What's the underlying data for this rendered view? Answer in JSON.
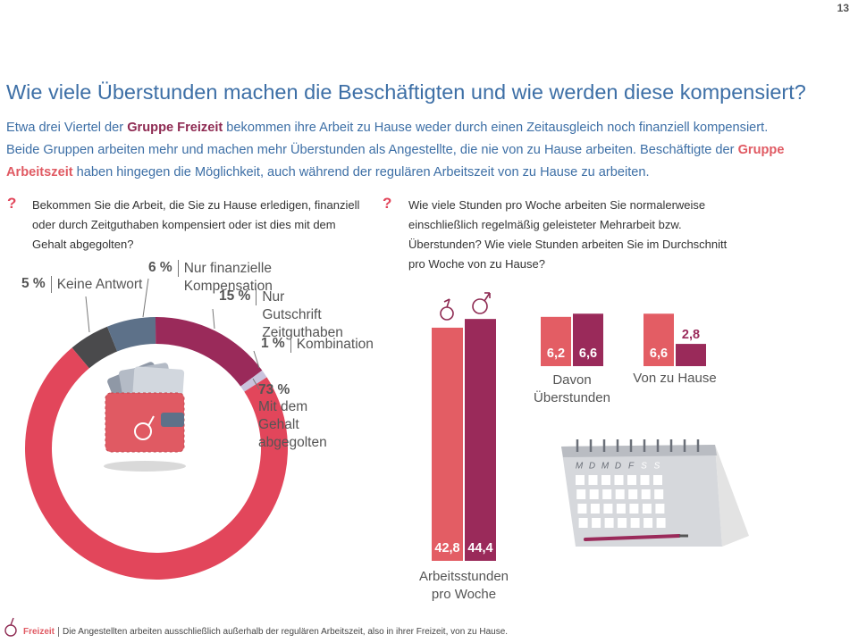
{
  "page_number": "13",
  "title": "Wie viele Überstunden machen die Beschäftigten und wie werden diese kompensiert?",
  "intro": {
    "text_1": "Etwa drei Viertel der ",
    "group_1": "Gruppe Freizeit",
    "text_2": " bekommen ihre Arbeit zu Hause weder durch einen Zeitausgleich noch finanziell kompensiert. Beide Gruppen arbeiten mehr und machen mehr Überstunden als Angestellte, die nie von zu Hause arbeiten. Beschäftigte der ",
    "group_2": "Gruppe Arbeitszeit",
    "text_3": " haben hingegen die Möglichkeit, auch während der regulären Arbeitszeit von zu Hause zu arbeiten."
  },
  "question_icon": "?",
  "questions": [
    "Bekommen Sie die Arbeit, die Sie zu Hause erledigen, finanziell oder durch Zeitguthaben kompensiert oder ist dies mit dem Gehalt abgegolten?",
    "Wie viele Stunden pro Woche arbeiten Sie normalerweise einschließlich regelmäßig geleisteter Mehrarbeit bzw. Überstunden? Wie viele Stunden arbeiten Sie im Durchschnitt pro Woche von zu Hause?"
  ],
  "donut": {
    "labels": [
      "Keine Antwort",
      "Nur finanzielle Kompensation",
      "Nur Gutschrift Zeitguthaben",
      "Kombination",
      "Mit dem Gehalt abgegolten"
    ],
    "values": [
      5,
      6,
      15,
      1,
      73
    ],
    "value_labels": [
      "5 %",
      "6 %",
      "15 %",
      "1 %",
      "73 %"
    ],
    "colors": [
      "#4a4a4c",
      "#5d7189",
      "#9a2a5a",
      "#c9c3dd",
      "#e2465b"
    ]
  },
  "bars": {
    "colors": [
      "#e35d64",
      "#9a2a5a"
    ],
    "groups": [
      {
        "label": "Arbeitsstunden pro Woche",
        "values": [
          42.8,
          44.4
        ],
        "value_labels": [
          "42,8",
          "44,4"
        ]
      },
      {
        "label": "Davon Überstunden",
        "values": [
          6.2,
          6.6
        ],
        "value_labels": [
          "6,2",
          "6,6"
        ]
      },
      {
        "label": "Von zu Hause",
        "values": [
          6.6,
          2.8
        ],
        "value_labels": [
          "6,6",
          "2,8"
        ]
      }
    ]
  },
  "calendar_days": [
    "M",
    "D",
    "M",
    "D",
    "F",
    "S",
    "S"
  ],
  "footnote": {
    "term": "Freizeit",
    "text": "Die Angestellten arbeiten ausschließlich außerhalb der regulären Arbeitszeit, also in ihrer Freizeit, von zu Hause."
  }
}
